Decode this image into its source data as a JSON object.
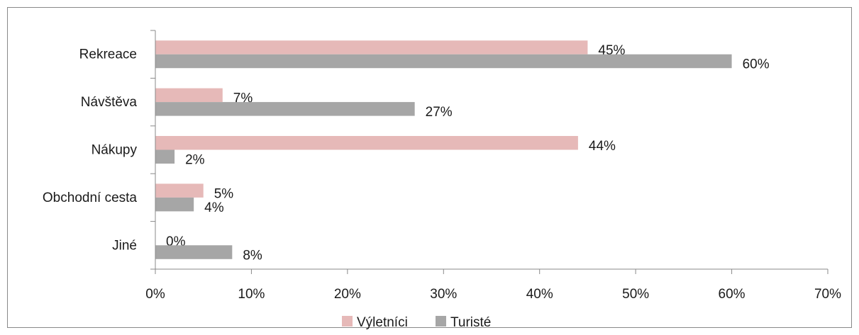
{
  "chart_data": {
    "type": "bar",
    "orientation": "horizontal",
    "title": "",
    "xlabel": "",
    "ylabel": "",
    "categories": [
      "Rekreace",
      "Návštěva",
      "Nákupy",
      "Obchodní cesta",
      "Jiné"
    ],
    "series": [
      {
        "name": "Výletníci",
        "color": "#e6b9b8",
        "values": [
          45,
          7,
          44,
          5,
          0
        ],
        "labels": [
          "45%",
          "7%",
          "44%",
          "5%",
          "0%"
        ]
      },
      {
        "name": "Turisté",
        "color": "#a6a6a6",
        "values": [
          60,
          27,
          2,
          4,
          8
        ],
        "labels": [
          "60%",
          "27%",
          "2%",
          "4%",
          "8%"
        ]
      }
    ],
    "xlim": [
      0,
      70
    ],
    "xticks": [
      0,
      10,
      20,
      30,
      40,
      50,
      60,
      70
    ],
    "xtick_labels": [
      "0%",
      "10%",
      "20%",
      "30%",
      "40%",
      "50%",
      "60%",
      "70%"
    ],
    "grid": false,
    "legend_position": "bottom"
  }
}
